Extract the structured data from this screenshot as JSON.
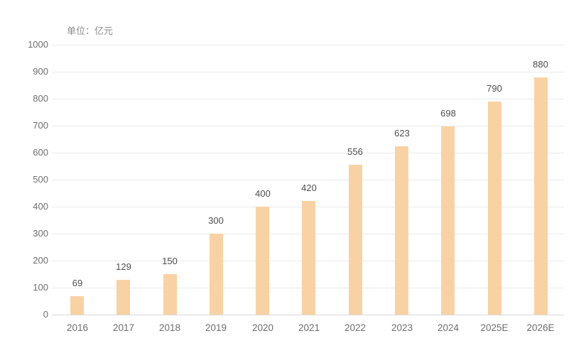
{
  "chart_data": {
    "type": "bar",
    "unit_label": "单位：亿元",
    "categories": [
      "2016",
      "2017",
      "2018",
      "2019",
      "2020",
      "2021",
      "2022",
      "2023",
      "2024",
      "2025E",
      "2026E"
    ],
    "values": [
      69,
      129,
      150,
      300,
      400,
      420,
      556,
      623,
      698,
      790,
      880
    ],
    "value_labels": [
      "69",
      "129",
      "150",
      "300",
      "400",
      "420",
      "556",
      "623",
      "698",
      "790",
      "880"
    ],
    "ytick_labels": [
      "0",
      "100",
      "200",
      "300",
      "400",
      "500",
      "600",
      "700",
      "800",
      "900",
      "1000"
    ],
    "ylim": [
      0,
      1000
    ],
    "ytick_step": 100,
    "grid": true,
    "legend": "none",
    "colors": {
      "bar": "#F9D2A4",
      "value_label": "#4d4d4d",
      "axis_label": "#6e6e6e",
      "unit_label": "#8c8c8c",
      "gridline": "#ebebeb",
      "axis_line": "#d9d9d9",
      "background": "#ffffff"
    }
  }
}
